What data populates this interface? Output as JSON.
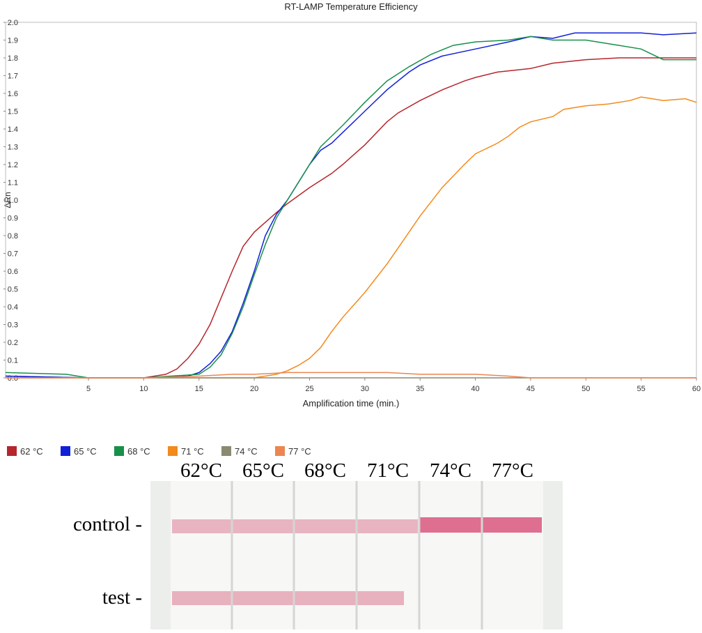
{
  "chart_data": {
    "type": "line",
    "title": "RT-LAMP Temperature Efficiency",
    "x_label": "Amplification time (min.)",
    "y_label": "ΔRn",
    "xlim": [
      -2.5,
      60
    ],
    "ylim": [
      0,
      2.0
    ],
    "xticks": [
      5,
      10,
      15,
      20,
      25,
      30,
      35,
      40,
      45,
      50,
      55,
      60
    ],
    "yticks": [
      {
        "value": 0,
        "label": "0.0"
      },
      0.1,
      0.2,
      0.3,
      0.4,
      0.5,
      0.6,
      0.7,
      0.8,
      0.9,
      {
        "value": 1,
        "label": "1.0"
      },
      1.1,
      1.2,
      1.3,
      1.4,
      1.5,
      1.6,
      1.7,
      1.8,
      1.9,
      {
        "value": 2,
        "label": "2.0"
      }
    ],
    "series": [
      {
        "name": "62 °C",
        "color": "#b5262d",
        "x": [
          -2.5,
          5,
          10,
          12,
          13,
          14,
          15,
          16,
          17,
          18,
          19,
          20,
          22,
          23,
          25,
          27,
          28,
          30,
          32,
          33,
          35,
          37,
          39,
          40,
          42,
          45,
          47,
          50,
          53,
          55,
          60
        ],
        "values": [
          0.01,
          0,
          0,
          0.02,
          0.05,
          0.11,
          0.19,
          0.3,
          0.45,
          0.6,
          0.74,
          0.82,
          0.93,
          0.98,
          1.07,
          1.15,
          1.2,
          1.31,
          1.44,
          1.49,
          1.56,
          1.62,
          1.67,
          1.69,
          1.72,
          1.74,
          1.77,
          1.79,
          1.8,
          1.8,
          1.8
        ]
      },
      {
        "name": "65 °C",
        "color": "#1020d8",
        "x": [
          -2.5,
          5,
          10,
          14,
          15,
          16,
          17,
          18,
          19,
          20,
          21,
          22,
          23,
          24,
          25,
          26,
          27,
          28,
          30,
          32,
          34,
          35,
          37,
          40,
          43,
          45,
          47,
          49,
          52,
          55,
          57,
          60
        ],
        "values": [
          0.01,
          0,
          0,
          0.01,
          0.03,
          0.08,
          0.15,
          0.26,
          0.42,
          0.6,
          0.8,
          0.92,
          1.0,
          1.1,
          1.2,
          1.28,
          1.32,
          1.38,
          1.5,
          1.62,
          1.72,
          1.76,
          1.81,
          1.85,
          1.89,
          1.92,
          1.91,
          1.94,
          1.94,
          1.94,
          1.93,
          1.94
        ]
      },
      {
        "name": "68 °C",
        "color": "#16904a",
        "x": [
          -2.5,
          3,
          5,
          10,
          15,
          16,
          17,
          18,
          19,
          20,
          21,
          22,
          23,
          24,
          25,
          26,
          28,
          30,
          32,
          34,
          36,
          38,
          40,
          43,
          45,
          47,
          50,
          53,
          55,
          57,
          60
        ],
        "values": [
          0.03,
          0.02,
          0,
          0,
          0.02,
          0.06,
          0.13,
          0.25,
          0.4,
          0.58,
          0.75,
          0.9,
          1.0,
          1.1,
          1.2,
          1.3,
          1.42,
          1.55,
          1.67,
          1.75,
          1.82,
          1.87,
          1.89,
          1.9,
          1.92,
          1.9,
          1.9,
          1.87,
          1.85,
          1.79,
          1.79
        ]
      },
      {
        "name": "71 °C",
        "color": "#f28a1c",
        "x": [
          -2.5,
          20,
          22,
          23,
          24,
          25,
          26,
          27,
          28,
          30,
          32,
          33,
          35,
          37,
          39,
          40,
          42,
          43,
          44,
          45,
          47,
          48,
          50,
          52,
          54,
          55,
          57,
          59,
          60
        ],
        "values": [
          0,
          0,
          0.02,
          0.04,
          0.07,
          0.11,
          0.17,
          0.26,
          0.34,
          0.48,
          0.64,
          0.73,
          0.91,
          1.07,
          1.2,
          1.26,
          1.32,
          1.36,
          1.41,
          1.44,
          1.47,
          1.51,
          1.53,
          1.54,
          1.56,
          1.58,
          1.56,
          1.57,
          1.55
        ]
      },
      {
        "name": "74 °C",
        "color": "#8a8a72",
        "x": [
          -2.5,
          60
        ],
        "values": [
          0,
          0
        ]
      },
      {
        "name": "77 °C",
        "color": "#ec8552",
        "x": [
          -2.5,
          10,
          15,
          18,
          20,
          23,
          25,
          30,
          32,
          35,
          38,
          40,
          43,
          45,
          60
        ],
        "values": [
          0,
          0,
          0.01,
          0.02,
          0.02,
          0.03,
          0.03,
          0.03,
          0.03,
          0.02,
          0.02,
          0.02,
          0.01,
          0,
          0
        ]
      }
    ]
  },
  "strip": {
    "headers": [
      "62°C",
      "65°C",
      "68°C",
      "71°C",
      "74°C",
      "77°C"
    ],
    "rows": [
      "control -",
      "test -"
    ]
  }
}
